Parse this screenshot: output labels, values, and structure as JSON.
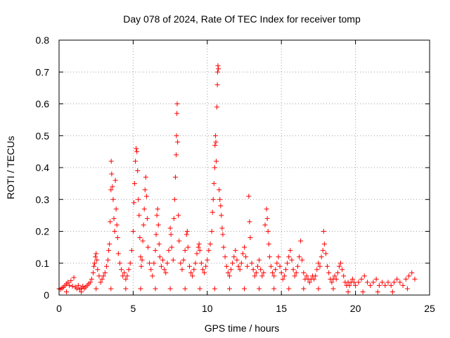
{
  "chart_data": {
    "type": "scatter",
    "title": "Day 078 of 2024, Rate Of TEC Index for receiver tomp",
    "xlabel": "GPS time / hours",
    "ylabel": "ROTI / TECUs",
    "xlim": [
      0,
      25
    ],
    "ylim": [
      0,
      0.8
    ],
    "x_ticks": [
      0,
      5,
      10,
      15,
      20,
      25
    ],
    "x_tick_labels": [
      "0",
      "5",
      "10",
      "15",
      "20",
      "25"
    ],
    "y_ticks": [
      0,
      0.1,
      0.2,
      0.3,
      0.4,
      0.5,
      0.6,
      0.7,
      0.8
    ],
    "y_tick_labels": [
      "0",
      "0.1",
      "0.2",
      "0.3",
      "0.4",
      "0.5",
      "0.6",
      "0.7",
      "0.8"
    ],
    "grid": true,
    "marker": "+",
    "color": "#ff0000",
    "series": [
      {
        "points": [
          [
            0.0,
            0.02
          ],
          [
            0.1,
            0.018
          ],
          [
            0.2,
            0.022
          ],
          [
            0.3,
            0.025
          ],
          [
            0.4,
            0.03
          ],
          [
            0.5,
            0.035
          ],
          [
            0.6,
            0.04
          ],
          [
            0.7,
            0.03
          ],
          [
            0.8,
            0.045
          ],
          [
            0.9,
            0.028
          ],
          [
            1.0,
            0.055
          ],
          [
            1.1,
            0.025
          ],
          [
            1.2,
            0.02
          ],
          [
            1.3,
            0.03
          ],
          [
            1.4,
            0.018
          ],
          [
            1.5,
            0.022
          ],
          [
            1.6,
            0.028
          ],
          [
            1.7,
            0.02
          ],
          [
            1.8,
            0.025
          ],
          [
            1.9,
            0.03
          ],
          [
            2.0,
            0.035
          ],
          [
            2.1,
            0.04
          ],
          [
            2.2,
            0.05
          ],
          [
            2.3,
            0.07
          ],
          [
            2.35,
            0.09
          ],
          [
            2.4,
            0.1
          ],
          [
            2.45,
            0.12
          ],
          [
            2.5,
            0.13
          ],
          [
            2.55,
            0.11
          ],
          [
            2.6,
            0.08
          ],
          [
            2.7,
            0.06
          ],
          [
            2.8,
            0.04
          ],
          [
            2.9,
            0.05
          ],
          [
            3.0,
            0.06
          ],
          [
            3.1,
            0.07
          ],
          [
            3.2,
            0.09
          ],
          [
            3.3,
            0.11
          ],
          [
            3.35,
            0.14
          ],
          [
            3.4,
            0.16
          ],
          [
            3.45,
            0.23
          ],
          [
            3.5,
            0.33
          ],
          [
            3.52,
            0.42
          ],
          [
            3.55,
            0.38
          ],
          [
            3.6,
            0.34
          ],
          [
            3.65,
            0.3
          ],
          [
            3.7,
            0.24
          ],
          [
            3.75,
            0.2
          ],
          [
            3.8,
            0.36
          ],
          [
            3.85,
            0.27
          ],
          [
            3.9,
            0.22
          ],
          [
            3.95,
            0.18
          ],
          [
            4.0,
            0.13
          ],
          [
            4.1,
            0.1
          ],
          [
            4.2,
            0.08
          ],
          [
            4.3,
            0.06
          ],
          [
            4.4,
            0.07
          ],
          [
            4.5,
            0.05
          ],
          [
            4.6,
            0.06
          ],
          [
            4.7,
            0.08
          ],
          [
            4.8,
            0.1
          ],
          [
            4.9,
            0.14
          ],
          [
            5.0,
            0.2
          ],
          [
            5.05,
            0.29
          ],
          [
            5.1,
            0.35
          ],
          [
            5.15,
            0.42
          ],
          [
            5.2,
            0.46
          ],
          [
            5.25,
            0.45
          ],
          [
            5.3,
            0.39
          ],
          [
            5.35,
            0.3
          ],
          [
            5.4,
            0.25
          ],
          [
            5.45,
            0.18
          ],
          [
            5.5,
            0.12
          ],
          [
            5.55,
            0.09
          ],
          [
            5.6,
            0.11
          ],
          [
            5.65,
            0.17
          ],
          [
            5.7,
            0.22
          ],
          [
            5.75,
            0.27
          ],
          [
            5.8,
            0.33
          ],
          [
            5.85,
            0.37
          ],
          [
            5.9,
            0.31
          ],
          [
            5.95,
            0.24
          ],
          [
            6.0,
            0.15
          ],
          [
            6.1,
            0.1
          ],
          [
            6.2,
            0.08
          ],
          [
            6.3,
            0.06
          ],
          [
            6.4,
            0.1
          ],
          [
            6.5,
            0.14
          ],
          [
            6.55,
            0.19
          ],
          [
            6.6,
            0.25
          ],
          [
            6.65,
            0.27
          ],
          [
            6.7,
            0.22
          ],
          [
            6.75,
            0.16
          ],
          [
            6.8,
            0.12
          ],
          [
            6.9,
            0.09
          ],
          [
            7.0,
            0.11
          ],
          [
            7.1,
            0.08
          ],
          [
            7.2,
            0.07
          ],
          [
            7.3,
            0.1
          ],
          [
            7.4,
            0.14
          ],
          [
            7.5,
            0.21
          ],
          [
            7.55,
            0.19
          ],
          [
            7.6,
            0.15
          ],
          [
            7.7,
            0.11
          ],
          [
            7.75,
            0.24
          ],
          [
            7.8,
            0.3
          ],
          [
            7.85,
            0.37
          ],
          [
            7.9,
            0.44
          ],
          [
            7.92,
            0.5
          ],
          [
            7.95,
            0.57
          ],
          [
            7.97,
            0.6
          ],
          [
            8.0,
            0.48
          ],
          [
            8.05,
            0.25
          ],
          [
            8.1,
            0.17
          ],
          [
            8.2,
            0.1
          ],
          [
            8.3,
            0.08
          ],
          [
            8.4,
            0.11
          ],
          [
            8.5,
            0.14
          ],
          [
            8.6,
            0.19
          ],
          [
            8.65,
            0.2
          ],
          [
            8.7,
            0.15
          ],
          [
            8.8,
            0.09
          ],
          [
            8.9,
            0.07
          ],
          [
            9.0,
            0.06
          ],
          [
            9.1,
            0.08
          ],
          [
            9.2,
            0.1
          ],
          [
            9.3,
            0.13
          ],
          [
            9.4,
            0.15
          ],
          [
            9.45,
            0.16
          ],
          [
            9.5,
            0.14
          ],
          [
            9.6,
            0.1
          ],
          [
            9.7,
            0.08
          ],
          [
            9.8,
            0.07
          ],
          [
            9.9,
            0.09
          ],
          [
            10.0,
            0.11
          ],
          [
            10.1,
            0.14
          ],
          [
            10.2,
            0.16
          ],
          [
            10.3,
            0.2
          ],
          [
            10.35,
            0.26
          ],
          [
            10.4,
            0.3
          ],
          [
            10.45,
            0.35
          ],
          [
            10.5,
            0.4
          ],
          [
            10.52,
            0.47
          ],
          [
            10.55,
            0.5
          ],
          [
            10.58,
            0.48
          ],
          [
            10.6,
            0.42
          ],
          [
            10.65,
            0.59
          ],
          [
            10.68,
            0.66
          ],
          [
            10.7,
            0.7
          ],
          [
            10.72,
            0.72
          ],
          [
            10.75,
            0.71
          ],
          [
            10.8,
            0.33
          ],
          [
            10.85,
            0.3
          ],
          [
            10.9,
            0.28
          ],
          [
            10.95,
            0.25
          ],
          [
            11.0,
            0.21
          ],
          [
            11.05,
            0.19
          ],
          [
            11.1,
            0.15
          ],
          [
            11.2,
            0.12
          ],
          [
            11.3,
            0.09
          ],
          [
            11.4,
            0.07
          ],
          [
            11.5,
            0.06
          ],
          [
            11.6,
            0.08
          ],
          [
            11.7,
            0.1
          ],
          [
            11.8,
            0.12
          ],
          [
            11.9,
            0.14
          ],
          [
            12.0,
            0.11
          ],
          [
            12.1,
            0.09
          ],
          [
            12.2,
            0.08
          ],
          [
            12.3,
            0.1
          ],
          [
            12.4,
            0.13
          ],
          [
            12.5,
            0.15
          ],
          [
            12.6,
            0.12
          ],
          [
            12.7,
            0.09
          ],
          [
            12.8,
            0.31
          ],
          [
            12.85,
            0.23
          ],
          [
            12.9,
            0.18
          ],
          [
            13.0,
            0.1
          ],
          [
            13.1,
            0.08
          ],
          [
            13.2,
            0.06
          ],
          [
            13.3,
            0.07
          ],
          [
            13.4,
            0.09
          ],
          [
            13.5,
            0.11
          ],
          [
            13.6,
            0.08
          ],
          [
            13.7,
            0.06
          ],
          [
            13.8,
            0.07
          ],
          [
            13.9,
            0.22
          ],
          [
            14.0,
            0.27
          ],
          [
            14.05,
            0.24
          ],
          [
            14.1,
            0.2
          ],
          [
            14.15,
            0.16
          ],
          [
            14.2,
            0.12
          ],
          [
            14.3,
            0.09
          ],
          [
            14.4,
            0.07
          ],
          [
            14.5,
            0.06
          ],
          [
            14.6,
            0.08
          ],
          [
            14.7,
            0.1
          ],
          [
            14.8,
            0.12
          ],
          [
            14.9,
            0.09
          ],
          [
            15.0,
            0.07
          ],
          [
            15.1,
            0.05
          ],
          [
            15.2,
            0.06
          ],
          [
            15.3,
            0.08
          ],
          [
            15.4,
            0.1
          ],
          [
            15.5,
            0.12
          ],
          [
            15.6,
            0.14
          ],
          [
            15.7,
            0.11
          ],
          [
            15.8,
            0.08
          ],
          [
            15.9,
            0.06
          ],
          [
            16.0,
            0.07
          ],
          [
            16.1,
            0.09
          ],
          [
            16.2,
            0.12
          ],
          [
            16.3,
            0.17
          ],
          [
            16.4,
            0.11
          ],
          [
            16.5,
            0.07
          ],
          [
            16.6,
            0.05
          ],
          [
            16.7,
            0.06
          ],
          [
            16.8,
            0.05
          ],
          [
            16.9,
            0.04
          ],
          [
            17.0,
            0.05
          ],
          [
            17.1,
            0.06
          ],
          [
            17.2,
            0.05
          ],
          [
            17.3,
            0.06
          ],
          [
            17.4,
            0.08
          ],
          [
            17.5,
            0.1
          ],
          [
            17.6,
            0.09
          ],
          [
            17.7,
            0.12
          ],
          [
            17.8,
            0.14
          ],
          [
            17.85,
            0.2
          ],
          [
            17.9,
            0.16
          ],
          [
            18.0,
            0.13
          ],
          [
            18.1,
            0.09
          ],
          [
            18.2,
            0.07
          ],
          [
            18.3,
            0.05
          ],
          [
            18.4,
            0.04
          ],
          [
            18.5,
            0.05
          ],
          [
            18.6,
            0.06
          ],
          [
            18.7,
            0.05
          ],
          [
            18.8,
            0.07
          ],
          [
            18.9,
            0.09
          ],
          [
            19.0,
            0.1
          ],
          [
            19.1,
            0.08
          ],
          [
            19.2,
            0.06
          ],
          [
            19.3,
            0.04
          ],
          [
            19.4,
            0.03
          ],
          [
            19.5,
            0.04
          ],
          [
            19.6,
            0.03
          ],
          [
            19.7,
            0.04
          ],
          [
            19.8,
            0.05
          ],
          [
            19.9,
            0.04
          ],
          [
            20.0,
            0.03
          ],
          [
            20.2,
            0.04
          ],
          [
            20.4,
            0.05
          ],
          [
            20.6,
            0.06
          ],
          [
            20.8,
            0.04
          ],
          [
            21.0,
            0.03
          ],
          [
            21.2,
            0.04
          ],
          [
            21.4,
            0.05
          ],
          [
            21.6,
            0.03
          ],
          [
            21.8,
            0.04
          ],
          [
            22.0,
            0.03
          ],
          [
            22.2,
            0.04
          ],
          [
            22.4,
            0.03
          ],
          [
            22.6,
            0.04
          ],
          [
            22.8,
            0.05
          ],
          [
            23.0,
            0.04
          ],
          [
            23.2,
            0.03
          ],
          [
            23.4,
            0.05
          ],
          [
            23.6,
            0.06
          ],
          [
            23.8,
            0.07
          ],
          [
            24.0,
            0.05
          ],
          [
            0.5,
            0.01
          ],
          [
            1.5,
            0.01
          ],
          [
            2.5,
            0.02
          ],
          [
            3.5,
            0.02
          ],
          [
            4.5,
            0.02
          ],
          [
            5.5,
            0.02
          ],
          [
            6.5,
            0.02
          ],
          [
            7.5,
            0.02
          ],
          [
            8.5,
            0.02
          ],
          [
            9.5,
            0.02
          ],
          [
            10.5,
            0.02
          ],
          [
            11.5,
            0.02
          ],
          [
            12.5,
            0.02
          ],
          [
            13.5,
            0.02
          ],
          [
            14.5,
            0.02
          ],
          [
            15.5,
            0.02
          ],
          [
            16.5,
            0.02
          ],
          [
            17.5,
            0.02
          ],
          [
            18.5,
            0.02
          ],
          [
            19.5,
            0.01
          ],
          [
            20.5,
            0.01
          ],
          [
            21.5,
            0.01
          ],
          [
            22.5,
            0.01
          ],
          [
            23.5,
            0.02
          ]
        ]
      }
    ]
  }
}
